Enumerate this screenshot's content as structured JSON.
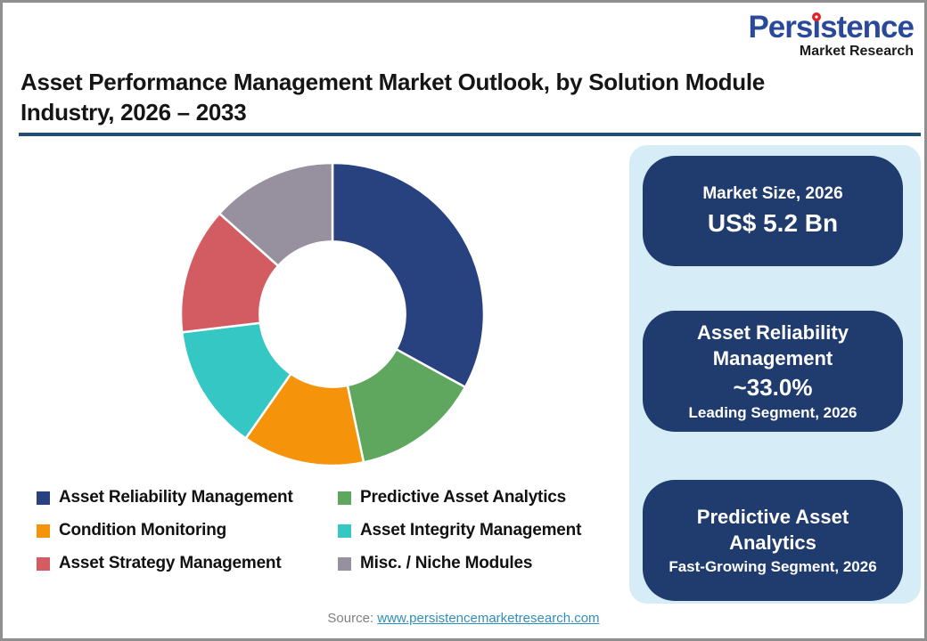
{
  "brand": {
    "name": "Persistence",
    "subtitle": "Market Research"
  },
  "title": {
    "line1": "Asset Performance Management Market Outlook, by Solution Module",
    "line2": "Industry, 2026 – 2033"
  },
  "chart_data": {
    "type": "pie",
    "subtype": "donut",
    "categories": [
      "Asset Reliability Management",
      "Predictive Asset Analytics",
      "Condition Monitoring",
      "Asset Integrity Management",
      "Asset Strategy Management",
      "Misc. / Niche Modules"
    ],
    "values": [
      33.0,
      13.7,
      13.0,
      13.4,
      13.5,
      13.4
    ],
    "unit": "% share, 2026",
    "colors": [
      "#28427f",
      "#5fa75f",
      "#f5940a",
      "#34c7c3",
      "#d25c62",
      "#97919f"
    ],
    "start_angle_deg": 0,
    "direction": "clockwise",
    "inner_radius_ratio": 0.48,
    "segment_gap_color": "#ffffff",
    "legend_position": "bottom"
  },
  "panel": {
    "cards": [
      {
        "title": "Market Size, 2026",
        "value": "US$ 5.2 Bn",
        "caption": ""
      },
      {
        "title": "Asset Reliability Management",
        "value": "~33.0%",
        "caption": "Leading Segment, 2026"
      },
      {
        "title": "Predictive Asset Analytics",
        "value": "",
        "caption": "Fast-Growing Segment, 2026"
      }
    ]
  },
  "source": {
    "label": "Source:",
    "link_text": "www.persistencemarketresearch.com"
  },
  "colors": {
    "card_navy": "#203c6e",
    "panel_light_blue": "#d6ecf7",
    "title_rule_navy": "#1f4e79",
    "logo_blue": "#2a4a99",
    "logo_red": "#e32226",
    "link_blue": "#2e8fbe",
    "source_gray": "#808080"
  }
}
